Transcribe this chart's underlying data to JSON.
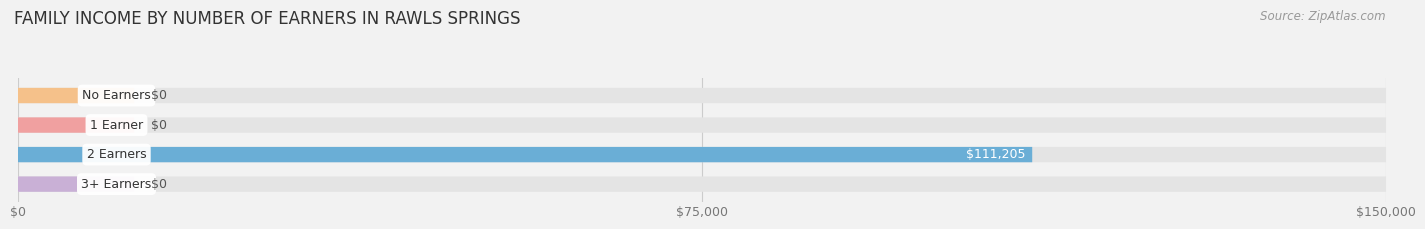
{
  "title": "FAMILY INCOME BY NUMBER OF EARNERS IN RAWLS SPRINGS",
  "source": "Source: ZipAtlas.com",
  "categories": [
    "No Earners",
    "1 Earner",
    "2 Earners",
    "3+ Earners"
  ],
  "values": [
    0,
    0,
    111205,
    0
  ],
  "max_value": 150000,
  "bar_colors": [
    "#f5c18a",
    "#f0a0a0",
    "#6aaed6",
    "#c9b0d6"
  ],
  "background_color": "#f2f2f2",
  "bar_bg_color": "#e4e4e4",
  "title_fontsize": 12,
  "source_fontsize": 8.5,
  "tick_labels": [
    "$0",
    "$75,000",
    "$150,000"
  ],
  "tick_values": [
    0,
    75000,
    150000
  ],
  "value_labels": [
    "$0",
    "$0",
    "$111,205",
    "$0"
  ]
}
